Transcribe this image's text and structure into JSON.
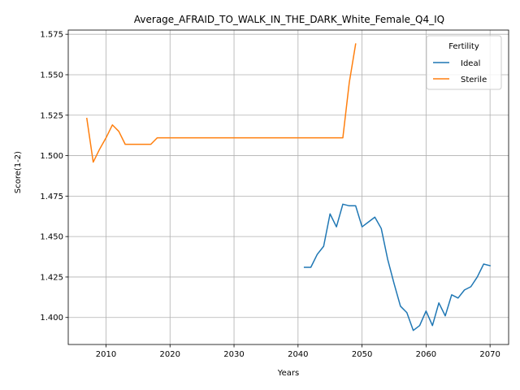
{
  "chart_data": {
    "type": "line",
    "title": "Average_AFRAID_TO_WALK_IN_THE_DARK_White_Female_Q4_IQ",
    "xlabel": "Years",
    "ylabel": "Score(1-2)",
    "xlim": [
      2004.1,
      2072.9
    ],
    "ylim": [
      1.3833,
      1.5776
    ],
    "xticks": [
      2010,
      2020,
      2030,
      2040,
      2050,
      2060,
      2070
    ],
    "yticks": [
      1.4,
      1.425,
      1.45,
      1.475,
      1.5,
      1.525,
      1.55,
      1.575
    ],
    "grid": true,
    "legend": {
      "title": "Fertility",
      "placement": "top-right"
    },
    "series": [
      {
        "name": "Ideal",
        "color": "#1f77b4",
        "x": [
          2041,
          2042,
          2043,
          2044,
          2045,
          2046,
          2047,
          2048,
          2049,
          2050,
          2051,
          2052,
          2053,
          2054,
          2055,
          2056,
          2057,
          2058,
          2059,
          2060,
          2061,
          2062,
          2063,
          2064,
          2065,
          2066,
          2067,
          2068,
          2069,
          2070
        ],
        "y": [
          1.431,
          1.431,
          1.439,
          1.444,
          1.464,
          1.456,
          1.47,
          1.469,
          1.469,
          1.456,
          1.459,
          1.462,
          1.455,
          1.436,
          1.421,
          1.407,
          1.403,
          1.392,
          1.395,
          1.404,
          1.395,
          1.409,
          1.401,
          1.414,
          1.412,
          1.417,
          1.419,
          1.425,
          1.433,
          1.432
        ]
      },
      {
        "name": "Sterile",
        "color": "#ff7f0e",
        "x": [
          2007,
          2008,
          2009,
          2010,
          2011,
          2012,
          2013,
          2014,
          2015,
          2016,
          2017,
          2018,
          2019,
          2020,
          2021,
          2022,
          2023,
          2024,
          2025,
          2026,
          2027,
          2028,
          2029,
          2030,
          2031,
          2032,
          2033,
          2034,
          2035,
          2036,
          2037,
          2038,
          2039,
          2040,
          2041,
          2042,
          2043,
          2044,
          2045,
          2046,
          2047,
          2048,
          2049
        ],
        "y": [
          1.523,
          1.496,
          1.504,
          1.511,
          1.519,
          1.515,
          1.507,
          1.507,
          1.507,
          1.507,
          1.507,
          1.511,
          1.511,
          1.511,
          1.511,
          1.511,
          1.511,
          1.511,
          1.511,
          1.511,
          1.511,
          1.511,
          1.511,
          1.511,
          1.511,
          1.511,
          1.511,
          1.511,
          1.511,
          1.511,
          1.511,
          1.511,
          1.511,
          1.511,
          1.511,
          1.511,
          1.511,
          1.511,
          1.511,
          1.511,
          1.511,
          1.545,
          1.569
        ]
      }
    ]
  }
}
